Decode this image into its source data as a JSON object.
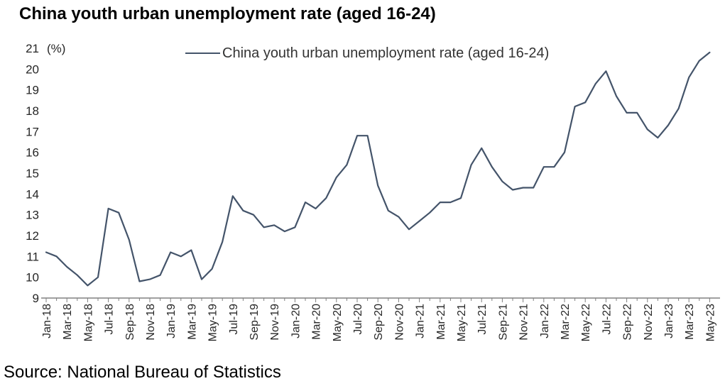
{
  "title": "China youth urban unemployment rate (aged 16-24)",
  "legend": {
    "label": "China youth urban unemployment rate (aged 16-24)"
  },
  "source": "Source: National Bureau of Statistics",
  "y_axis": {
    "unit": "(%)",
    "min": 9,
    "max": 21,
    "step": 1
  },
  "chart_data": {
    "type": "line",
    "title": "China youth urban unemployment rate (aged 16-24)",
    "xlabel": "",
    "ylabel": "(%)",
    "ylim": [
      9,
      21
    ],
    "y_tick_step": 1,
    "grid": false,
    "legend_position": "top-center",
    "line_color": "#44546A",
    "axis_color": "#808080",
    "label_color": "#262626",
    "x_label_every_n_months": 2,
    "categories": [
      "Jan-18",
      "Feb-18",
      "Mar-18",
      "Apr-18",
      "May-18",
      "Jun-18",
      "Jul-18",
      "Aug-18",
      "Sep-18",
      "Oct-18",
      "Nov-18",
      "Dec-18",
      "Jan-19",
      "Feb-19",
      "Mar-19",
      "Apr-19",
      "May-19",
      "Jun-19",
      "Jul-19",
      "Aug-19",
      "Sep-19",
      "Oct-19",
      "Nov-19",
      "Dec-19",
      "Jan-20",
      "Feb-20",
      "Mar-20",
      "Apr-20",
      "May-20",
      "Jun-20",
      "Jul-20",
      "Aug-20",
      "Sep-20",
      "Oct-20",
      "Nov-20",
      "Dec-20",
      "Jan-21",
      "Feb-21",
      "Mar-21",
      "Apr-21",
      "May-21",
      "Jun-21",
      "Jul-21",
      "Aug-21",
      "Sep-21",
      "Oct-21",
      "Nov-21",
      "Dec-21",
      "Jan-22",
      "Feb-22",
      "Mar-22",
      "Apr-22",
      "May-22",
      "Jun-22",
      "Jul-22",
      "Aug-22",
      "Sep-22",
      "Oct-22",
      "Nov-22",
      "Dec-22",
      "Jan-23",
      "Feb-23",
      "Mar-23",
      "Apr-23",
      "May-23"
    ],
    "series": [
      {
        "name": "China youth urban unemployment rate (aged 16-24)",
        "values": [
          11.2,
          11.0,
          10.5,
          10.1,
          9.6,
          10.0,
          13.3,
          13.1,
          11.8,
          9.8,
          9.9,
          10.1,
          11.2,
          11.0,
          11.3,
          9.9,
          10.4,
          11.7,
          13.9,
          13.2,
          13.0,
          12.4,
          12.5,
          12.2,
          12.4,
          13.6,
          13.3,
          13.8,
          14.8,
          15.4,
          16.8,
          16.8,
          14.4,
          13.2,
          12.9,
          12.3,
          12.7,
          13.1,
          13.6,
          13.6,
          13.8,
          15.4,
          16.2,
          15.3,
          14.6,
          14.2,
          14.3,
          14.3,
          15.3,
          15.3,
          16.0,
          18.2,
          18.4,
          19.3,
          19.9,
          18.7,
          17.9,
          17.9,
          17.1,
          16.7,
          17.3,
          18.1,
          19.6,
          20.4,
          20.8
        ]
      }
    ]
  }
}
